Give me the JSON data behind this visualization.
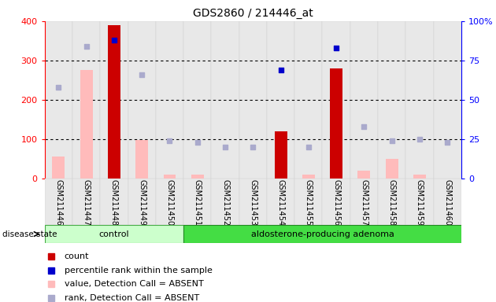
{
  "title": "GDS2860 / 214446_at",
  "samples": [
    "GSM211446",
    "GSM211447",
    "GSM211448",
    "GSM211449",
    "GSM211450",
    "GSM211451",
    "GSM211452",
    "GSM211453",
    "GSM211454",
    "GSM211455",
    "GSM211456",
    "GSM211457",
    "GSM211458",
    "GSM211459",
    "GSM211460"
  ],
  "n_control": 5,
  "count_values": [
    0,
    0,
    390,
    0,
    0,
    0,
    0,
    0,
    120,
    0,
    280,
    0,
    0,
    0,
    0
  ],
  "count_absent_values": [
    55,
    275,
    0,
    97,
    10,
    10,
    0,
    0,
    0,
    10,
    0,
    20,
    50,
    10,
    0
  ],
  "rank_pct_present": [
    null,
    null,
    88,
    null,
    null,
    null,
    null,
    null,
    69,
    null,
    83,
    null,
    null,
    null,
    null
  ],
  "rank_pct_absent": [
    58,
    84,
    null,
    66,
    24,
    23,
    20,
    20,
    null,
    20,
    null,
    33,
    24,
    25,
    23
  ],
  "detection_absent": [
    true,
    true,
    false,
    true,
    true,
    true,
    true,
    true,
    false,
    true,
    false,
    true,
    true,
    true,
    true
  ],
  "ylim_left": [
    0,
    400
  ],
  "ylim_right": [
    0,
    100
  ],
  "yticks_left": [
    0,
    100,
    200,
    300,
    400
  ],
  "yticks_right": [
    0,
    25,
    50,
    75,
    100
  ],
  "bar_color_present": "#cc0000",
  "bar_color_absent": "#ffbbbb",
  "dot_color_present": "#0000cc",
  "dot_color_absent": "#aaaacc",
  "control_color": "#ccffcc",
  "adenoma_color": "#33dd33",
  "legend_items": [
    {
      "color": "#cc0000",
      "label": "count"
    },
    {
      "color": "#0000cc",
      "label": "percentile rank within the sample"
    },
    {
      "color": "#ffbbbb",
      "label": "value, Detection Call = ABSENT"
    },
    {
      "color": "#aaaacc",
      "label": "rank, Detection Call = ABSENT"
    }
  ]
}
